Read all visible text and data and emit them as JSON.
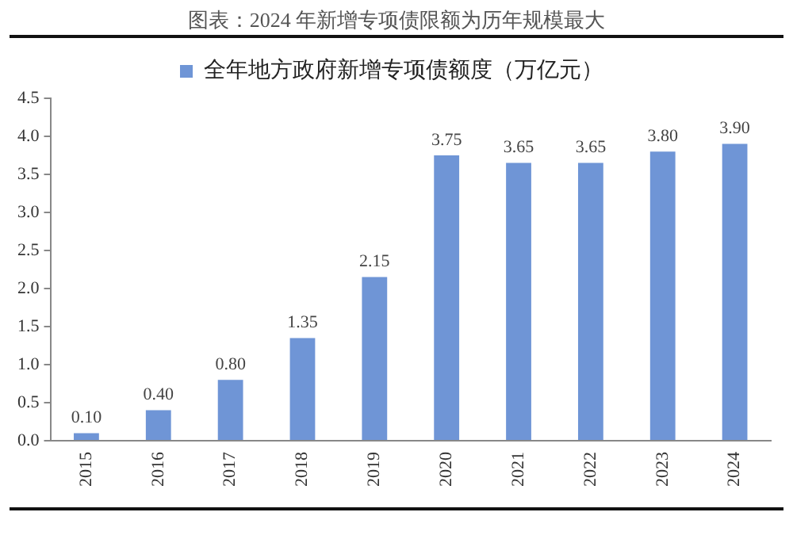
{
  "chart_data": {
    "type": "bar",
    "title": "图表：2024 年新增专项债限额为历年规模最大",
    "categories": [
      "2015",
      "2016",
      "2017",
      "2018",
      "2019",
      "2020",
      "2021",
      "2022",
      "2023",
      "2024"
    ],
    "series": [
      {
        "name": "全年地方政府新增专项债额度（万亿元）",
        "color": "#6f95d6",
        "values": [
          0.1,
          0.4,
          0.8,
          1.35,
          2.15,
          3.75,
          3.65,
          3.65,
          3.8,
          3.9
        ],
        "value_labels": [
          "0.10",
          "0.40",
          "0.80",
          "1.35",
          "2.15",
          "3.75",
          "3.65",
          "3.65",
          "3.80",
          "3.90"
        ]
      }
    ],
    "ylim": [
      0,
      4.5
    ],
    "yticks": [
      {
        "value": 0,
        "label": "0.0"
      },
      {
        "value": 0.5,
        "label": "0.5"
      },
      {
        "value": 1,
        "label": "1.0"
      },
      {
        "value": 1.5,
        "label": "1.5"
      },
      {
        "value": 2,
        "label": "2.0"
      },
      {
        "value": 2.5,
        "label": "2.5"
      },
      {
        "value": 3,
        "label": "3.0"
      },
      {
        "value": 3.5,
        "label": "3.5"
      },
      {
        "value": 4,
        "label": "4.0"
      },
      {
        "value": 4.5,
        "label": "4.5"
      }
    ],
    "legend": "top",
    "grid": false
  }
}
